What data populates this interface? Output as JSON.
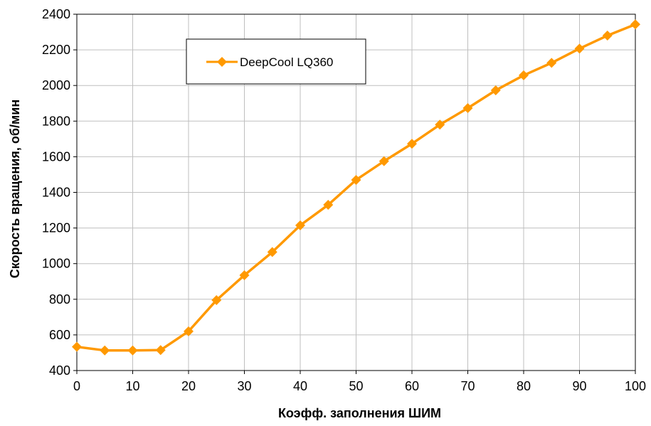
{
  "chart_data": {
    "type": "line",
    "xlabel": "Коэфф. заполнения ШИМ",
    "ylabel": "Скорость вращения, об/мин",
    "xlim": [
      0,
      100
    ],
    "ylim": [
      400,
      2400
    ],
    "x_ticks": [
      "0",
      "10",
      "20",
      "30",
      "40",
      "50",
      "60",
      "70",
      "80",
      "90",
      "100"
    ],
    "y_ticks": [
      "400",
      "600",
      "800",
      "1000",
      "1200",
      "1400",
      "1600",
      "1800",
      "2000",
      "2200",
      "2400"
    ],
    "grid": true,
    "legend_position": "top-left",
    "series": [
      {
        "name": "DeepCool LQ360",
        "color": "#ff9900",
        "marker": "diamond",
        "x": [
          0,
          5,
          10,
          15,
          20,
          25,
          30,
          35,
          40,
          45,
          50,
          55,
          60,
          65,
          70,
          75,
          80,
          85,
          90,
          95,
          100
        ],
        "y": [
          533,
          513,
          513,
          515,
          620,
          795,
          935,
          1065,
          1215,
          1330,
          1470,
          1575,
          1673,
          1780,
          1873,
          1973,
          2057,
          2127,
          2207,
          2280,
          2343
        ]
      }
    ]
  }
}
